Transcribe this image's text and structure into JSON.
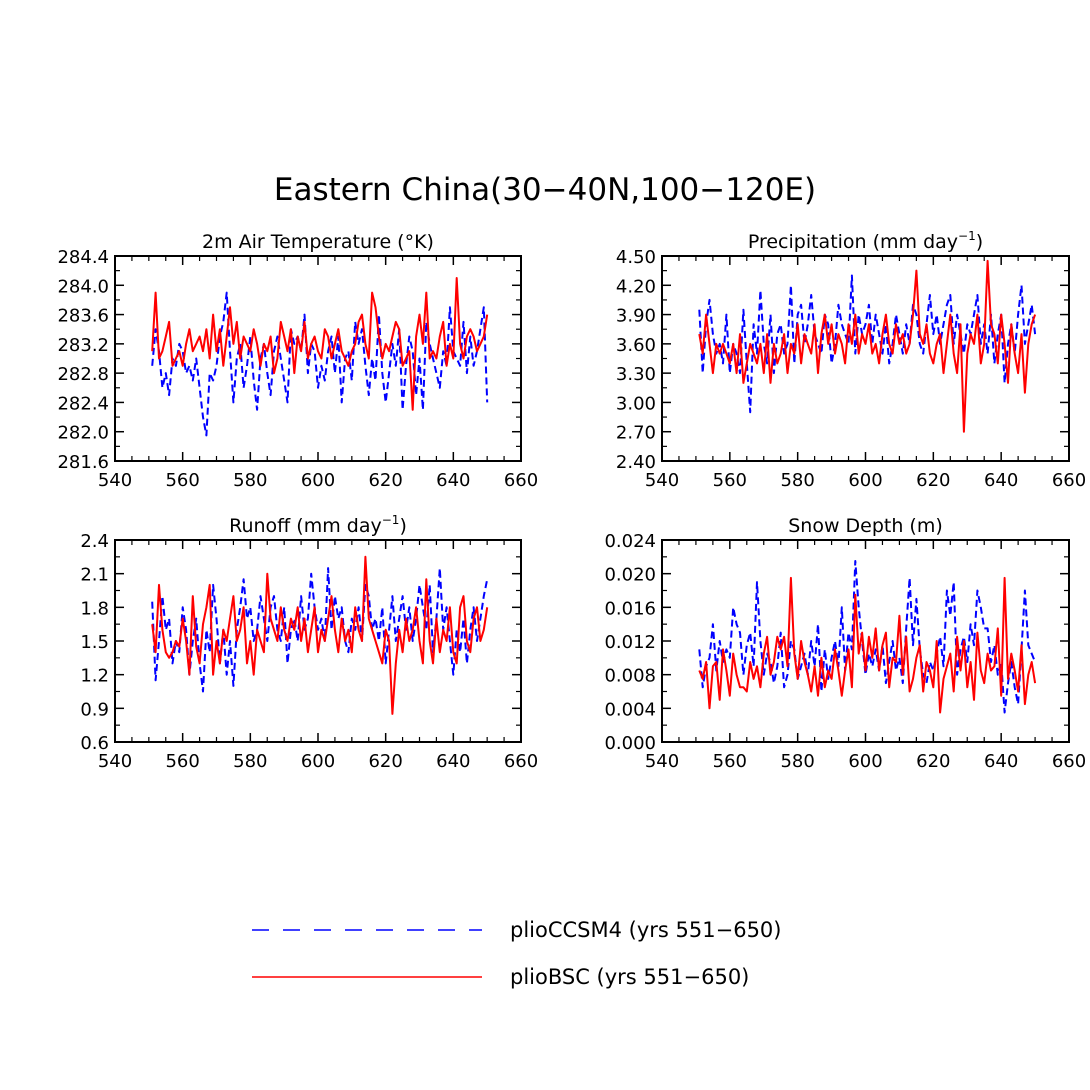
{
  "title": "Eastern China(30−40N,100−120E)",
  "legend": {
    "entries": [
      {
        "name": "plioCCSM4 (yrs 551−650)",
        "color": "#0000ff",
        "style": "dashed"
      },
      {
        "name": "plioBSC (yrs 551−650)",
        "color": "#ff0000",
        "style": "solid"
      }
    ]
  },
  "chart_data": [
    {
      "type": "line",
      "title": "2m Air Temperature (°K)",
      "title_main": "2m Air Temperature (°K)",
      "title_sup": "",
      "title_tail": "",
      "xlim": [
        540,
        660
      ],
      "ylim": [
        281.6,
        284.4
      ],
      "xticks": [
        "540",
        "560",
        "580",
        "600",
        "620",
        "640",
        "660"
      ],
      "yticks": [
        "281.6",
        "282.0",
        "282.4",
        "282.8",
        "283.2",
        "283.6",
        "284.0",
        "284.4"
      ],
      "x_start": 551,
      "series": [
        {
          "name": "plioCCSM4",
          "color": "#0000ff",
          "style": "dashed",
          "values": [
            282.9,
            283.4,
            283.1,
            282.6,
            282.8,
            282.5,
            283.0,
            282.9,
            283.2,
            283.1,
            282.8,
            282.9,
            282.7,
            283.0,
            282.6,
            282.2,
            281.95,
            282.8,
            282.7,
            282.9,
            283.3,
            283.5,
            283.9,
            283.1,
            282.4,
            283.0,
            283.2,
            282.6,
            282.9,
            283.3,
            282.7,
            282.3,
            283.0,
            283.2,
            282.8,
            282.5,
            283.1,
            283.3,
            283.0,
            282.7,
            282.4,
            283.4,
            283.2,
            283.3,
            283.1,
            283.6,
            282.8,
            283.2,
            283.1,
            282.6,
            282.9,
            282.7,
            283.1,
            283.3,
            282.8,
            283.3,
            282.4,
            283.0,
            283.1,
            282.7,
            283.5,
            283.2,
            283.4,
            282.9,
            282.5,
            283.0,
            282.7,
            283.6,
            282.8,
            282.4,
            282.8,
            283.2,
            282.9,
            283.4,
            282.3,
            282.9,
            283.3,
            283.1,
            282.5,
            283.0,
            282.3,
            283.5,
            283.2,
            283.0,
            282.8,
            282.6,
            283.1,
            282.9,
            283.7,
            283.1,
            283.0,
            282.9,
            283.5,
            282.8,
            283.3,
            282.9,
            283.1,
            283.4,
            283.7,
            282.4
          ]
        },
        {
          "name": "plioBSC",
          "color": "#ff0000",
          "style": "solid",
          "values": [
            283.1,
            283.9,
            283.0,
            283.1,
            283.3,
            283.5,
            282.9,
            283.0,
            283.1,
            282.9,
            283.2,
            283.4,
            283.1,
            283.2,
            283.3,
            283.1,
            283.4,
            283.0,
            283.6,
            283.1,
            283.4,
            282.9,
            283.3,
            283.7,
            283.2,
            283.5,
            283.0,
            283.3,
            283.2,
            283.1,
            283.4,
            283.2,
            282.9,
            283.2,
            283.1,
            283.3,
            282.8,
            283.0,
            283.5,
            283.3,
            283.1,
            283.4,
            282.8,
            283.3,
            283.1,
            283.5,
            283.0,
            283.2,
            283.3,
            283.1,
            283.0,
            283.4,
            283.3,
            283.0,
            283.2,
            283.4,
            283.1,
            283.0,
            282.9,
            283.1,
            283.2,
            283.5,
            283.6,
            283.2,
            283.0,
            283.9,
            283.7,
            283.3,
            283.0,
            283.2,
            283.1,
            283.3,
            283.5,
            283.4,
            282.9,
            283.0,
            283.1,
            282.3,
            283.3,
            283.6,
            283.2,
            283.9,
            283.0,
            283.1,
            283.0,
            283.3,
            283.5,
            282.9,
            283.2,
            283.0,
            284.1,
            283.2,
            283.0,
            283.3,
            283.4,
            283.3,
            283.1,
            283.2,
            283.3,
            283.6
          ]
        }
      ]
    },
    {
      "type": "line",
      "title": "Precipitation (mm day⁻¹)",
      "title_main": "Precipitation (mm day",
      "title_sup": "−1",
      "title_tail": ")",
      "xlim": [
        540,
        660
      ],
      "ylim": [
        2.4,
        4.5
      ],
      "xticks": [
        "540",
        "560",
        "580",
        "600",
        "620",
        "640",
        "660"
      ],
      "yticks": [
        "2.40",
        "2.70",
        "3.00",
        "3.30",
        "3.60",
        "3.90",
        "4.20",
        "4.50"
      ],
      "x_start": 551,
      "series": [
        {
          "name": "plioCCSM4",
          "color": "#0000ff",
          "style": "dashed",
          "values": [
            3.95,
            3.3,
            3.8,
            4.05,
            3.7,
            3.5,
            3.6,
            3.4,
            3.9,
            3.3,
            3.6,
            3.5,
            3.3,
            3.95,
            3.4,
            2.9,
            3.8,
            3.5,
            4.15,
            3.6,
            3.4,
            3.9,
            3.3,
            3.7,
            3.8,
            3.5,
            3.6,
            4.2,
            3.4,
            3.9,
            4.0,
            3.6,
            3.8,
            4.1,
            3.7,
            3.6,
            3.5,
            3.9,
            3.8,
            3.4,
            3.6,
            4.0,
            3.8,
            3.7,
            3.6,
            4.3,
            3.5,
            3.9,
            3.7,
            3.8,
            4.0,
            3.6,
            3.9,
            3.7,
            3.5,
            3.8,
            3.4,
            3.6,
            3.9,
            3.7,
            3.5,
            3.8,
            3.6,
            4.0,
            3.9,
            3.6,
            3.5,
            3.8,
            4.1,
            3.7,
            3.9,
            3.6,
            3.8,
            4.0,
            4.1,
            3.6,
            3.9,
            3.7,
            3.5,
            3.8,
            3.7,
            3.9,
            4.1,
            3.6,
            3.8,
            3.5,
            3.9,
            3.4,
            3.7,
            3.9,
            3.2,
            3.6,
            3.8,
            3.5,
            3.9,
            4.2,
            3.6,
            3.8,
            4.0,
            3.7
          ]
        },
        {
          "name": "plioBSC",
          "color": "#ff0000",
          "style": "solid",
          "values": [
            3.7,
            3.5,
            3.9,
            3.6,
            3.3,
            3.6,
            3.5,
            3.6,
            3.5,
            3.4,
            3.6,
            3.3,
            3.7,
            3.2,
            3.4,
            3.6,
            3.5,
            3.4,
            3.6,
            3.3,
            3.7,
            3.2,
            3.6,
            3.4,
            3.5,
            3.7,
            3.3,
            3.6,
            3.5,
            3.8,
            3.4,
            3.7,
            3.6,
            3.5,
            3.8,
            3.3,
            3.7,
            3.9,
            3.6,
            3.8,
            3.5,
            3.7,
            3.6,
            3.4,
            3.8,
            3.6,
            3.9,
            3.5,
            3.7,
            3.6,
            3.8,
            3.5,
            3.6,
            3.4,
            3.7,
            3.9,
            3.6,
            3.5,
            3.8,
            3.6,
            3.7,
            3.5,
            3.6,
            3.9,
            4.35,
            3.7,
            3.6,
            3.8,
            3.5,
            3.4,
            3.6,
            3.7,
            3.3,
            3.6,
            3.9,
            3.5,
            3.3,
            3.8,
            2.7,
            3.5,
            3.7,
            3.6,
            3.9,
            3.4,
            3.6,
            4.45,
            3.8,
            3.7,
            3.4,
            3.9,
            3.6,
            3.2,
            3.8,
            3.5,
            3.3,
            3.7,
            3.1,
            3.6,
            3.8,
            3.9
          ]
        }
      ]
    },
    {
      "type": "line",
      "title": "Runoff (mm day⁻¹)",
      "title_main": "Runoff (mm day",
      "title_sup": "−1",
      "title_tail": ")",
      "xlim": [
        540,
        660
      ],
      "ylim": [
        0.6,
        2.4
      ],
      "xticks": [
        "540",
        "560",
        "580",
        "600",
        "620",
        "640",
        "660"
      ],
      "yticks": [
        "0.6",
        "0.9",
        "1.2",
        "1.5",
        "1.8",
        "2.1",
        "2.4"
      ],
      "x_start": 551,
      "series": [
        {
          "name": "plioCCSM4",
          "color": "#0000ff",
          "style": "dashed",
          "values": [
            1.85,
            1.15,
            1.5,
            1.9,
            1.6,
            1.7,
            1.3,
            1.5,
            1.4,
            1.8,
            1.6,
            1.2,
            1.5,
            1.7,
            1.3,
            1.05,
            1.6,
            1.4,
            2.0,
            1.7,
            1.3,
            1.6,
            1.2,
            1.5,
            1.1,
            1.6,
            1.8,
            2.05,
            1.7,
            1.8,
            1.5,
            1.6,
            1.9,
            1.7,
            1.5,
            1.8,
            1.9,
            1.6,
            1.5,
            1.8,
            1.3,
            1.6,
            1.7,
            1.5,
            1.9,
            1.6,
            1.7,
            2.1,
            1.8,
            1.6,
            1.7,
            1.5,
            2.15,
            1.6,
            1.9,
            1.7,
            1.8,
            1.5,
            1.4,
            1.7,
            1.6,
            1.8,
            1.5,
            2.0,
            1.9,
            1.6,
            1.7,
            1.5,
            1.8,
            1.3,
            1.6,
            1.9,
            1.5,
            1.7,
            1.9,
            1.6,
            1.8,
            1.5,
            1.7,
            2.0,
            1.8,
            1.6,
            2.0,
            1.4,
            1.7,
            2.15,
            1.6,
            1.8,
            1.5,
            1.2,
            1.6,
            1.4,
            1.7,
            1.3,
            1.6,
            1.8,
            1.5,
            1.7,
            1.9,
            2.05
          ]
        },
        {
          "name": "plioBSC",
          "color": "#ff0000",
          "style": "solid",
          "values": [
            1.65,
            1.4,
            2.0,
            1.6,
            1.4,
            1.35,
            1.4,
            1.5,
            1.45,
            1.7,
            1.5,
            1.2,
            1.9,
            1.45,
            1.3,
            1.65,
            1.8,
            2.0,
            1.2,
            1.5,
            1.3,
            1.6,
            1.5,
            1.7,
            1.9,
            1.5,
            1.6,
            1.8,
            1.3,
            1.5,
            1.2,
            1.6,
            1.5,
            1.4,
            2.1,
            1.7,
            1.6,
            1.5,
            1.8,
            1.6,
            1.5,
            1.7,
            1.6,
            1.8,
            1.5,
            1.7,
            1.4,
            1.6,
            1.8,
            1.4,
            1.6,
            1.5,
            1.7,
            1.9,
            1.6,
            1.4,
            1.7,
            1.5,
            1.6,
            1.4,
            1.8,
            1.6,
            1.5,
            2.25,
            1.7,
            1.6,
            1.5,
            1.4,
            1.3,
            1.6,
            1.5,
            0.85,
            1.3,
            1.6,
            1.4,
            1.7,
            1.5,
            1.6,
            1.8,
            1.5,
            1.3,
            2.05,
            1.5,
            1.3,
            1.7,
            1.4,
            1.6,
            1.5,
            1.8,
            1.4,
            1.3,
            1.8,
            1.9,
            1.5,
            1.4,
            1.7,
            1.8,
            1.5,
            1.6,
            1.8
          ]
        }
      ]
    },
    {
      "type": "line",
      "title": "Snow Depth (m)",
      "title_main": "Snow Depth (m)",
      "title_sup": "",
      "title_tail": "",
      "xlim": [
        540,
        660
      ],
      "ylim": [
        0.0,
        0.024
      ],
      "xticks": [
        "540",
        "560",
        "580",
        "600",
        "620",
        "640",
        "660"
      ],
      "yticks": [
        "0.000",
        "0.004",
        "0.008",
        "0.012",
        "0.016",
        "0.020",
        "0.024"
      ],
      "x_start": 551,
      "series": [
        {
          "name": "plioCCSM4",
          "color": "#0000ff",
          "style": "dashed",
          "values": [
            0.011,
            0.0065,
            0.009,
            0.01,
            0.014,
            0.0085,
            0.012,
            0.0095,
            0.011,
            0.01,
            0.016,
            0.014,
            0.013,
            0.008,
            0.0115,
            0.013,
            0.009,
            0.019,
            0.012,
            0.008,
            0.0105,
            0.0095,
            0.007,
            0.009,
            0.013,
            0.0065,
            0.008,
            0.012,
            0.011,
            0.0075,
            0.009,
            0.0105,
            0.008,
            0.012,
            0.009,
            0.014,
            0.006,
            0.011,
            0.0075,
            0.01,
            0.012,
            0.009,
            0.016,
            0.0085,
            0.013,
            0.011,
            0.0215,
            0.016,
            0.012,
            0.008,
            0.0105,
            0.009,
            0.011,
            0.0085,
            0.0115,
            0.007,
            0.0095,
            0.012,
            0.0085,
            0.01,
            0.007,
            0.0135,
            0.0195,
            0.0115,
            0.017,
            0.011,
            0.008,
            0.007,
            0.0095,
            0.0085,
            0.0105,
            0.0125,
            0.009,
            0.018,
            0.015,
            0.019,
            0.008,
            0.011,
            0.0125,
            0.0095,
            0.014,
            0.0115,
            0.018,
            0.016,
            0.0135,
            0.0135,
            0.0095,
            0.0115,
            0.008,
            0.0095,
            0.0035,
            0.007,
            0.0095,
            0.0065,
            0.0045,
            0.011,
            0.018,
            0.0115,
            0.0105,
            0.0095
          ]
        },
        {
          "name": "plioBSC",
          "color": "#ff0000",
          "style": "solid",
          "values": [
            0.0085,
            0.0075,
            0.0095,
            0.004,
            0.009,
            0.0095,
            0.005,
            0.011,
            0.0085,
            0.0055,
            0.0105,
            0.008,
            0.0065,
            0.0065,
            0.006,
            0.0095,
            0.0075,
            0.009,
            0.0065,
            0.0105,
            0.0125,
            0.008,
            0.0095,
            0.0125,
            0.011,
            0.0125,
            0.009,
            0.0195,
            0.0105,
            0.0075,
            0.012,
            0.0095,
            0.008,
            0.006,
            0.009,
            0.0055,
            0.01,
            0.0065,
            0.0085,
            0.0075,
            0.011,
            0.0085,
            0.0055,
            0.0085,
            0.011,
            0.0065,
            0.0175,
            0.0105,
            0.013,
            0.0085,
            0.0125,
            0.01,
            0.0135,
            0.0085,
            0.0115,
            0.013,
            0.0065,
            0.01,
            0.0095,
            0.015,
            0.008,
            0.0125,
            0.006,
            0.0075,
            0.01,
            0.0115,
            0.006,
            0.0095,
            0.0085,
            0.0065,
            0.012,
            0.0035,
            0.0075,
            0.009,
            0.0105,
            0.006,
            0.0125,
            0.0085,
            0.012,
            0.0065,
            0.0095,
            0.005,
            0.013,
            0.0085,
            0.007,
            0.0105,
            0.0085,
            0.009,
            0.0135,
            0.0055,
            0.0195,
            0.0075,
            0.0105,
            0.0085,
            0.006,
            0.0115,
            0.0045,
            0.008,
            0.0095,
            0.007
          ]
        }
      ]
    }
  ]
}
